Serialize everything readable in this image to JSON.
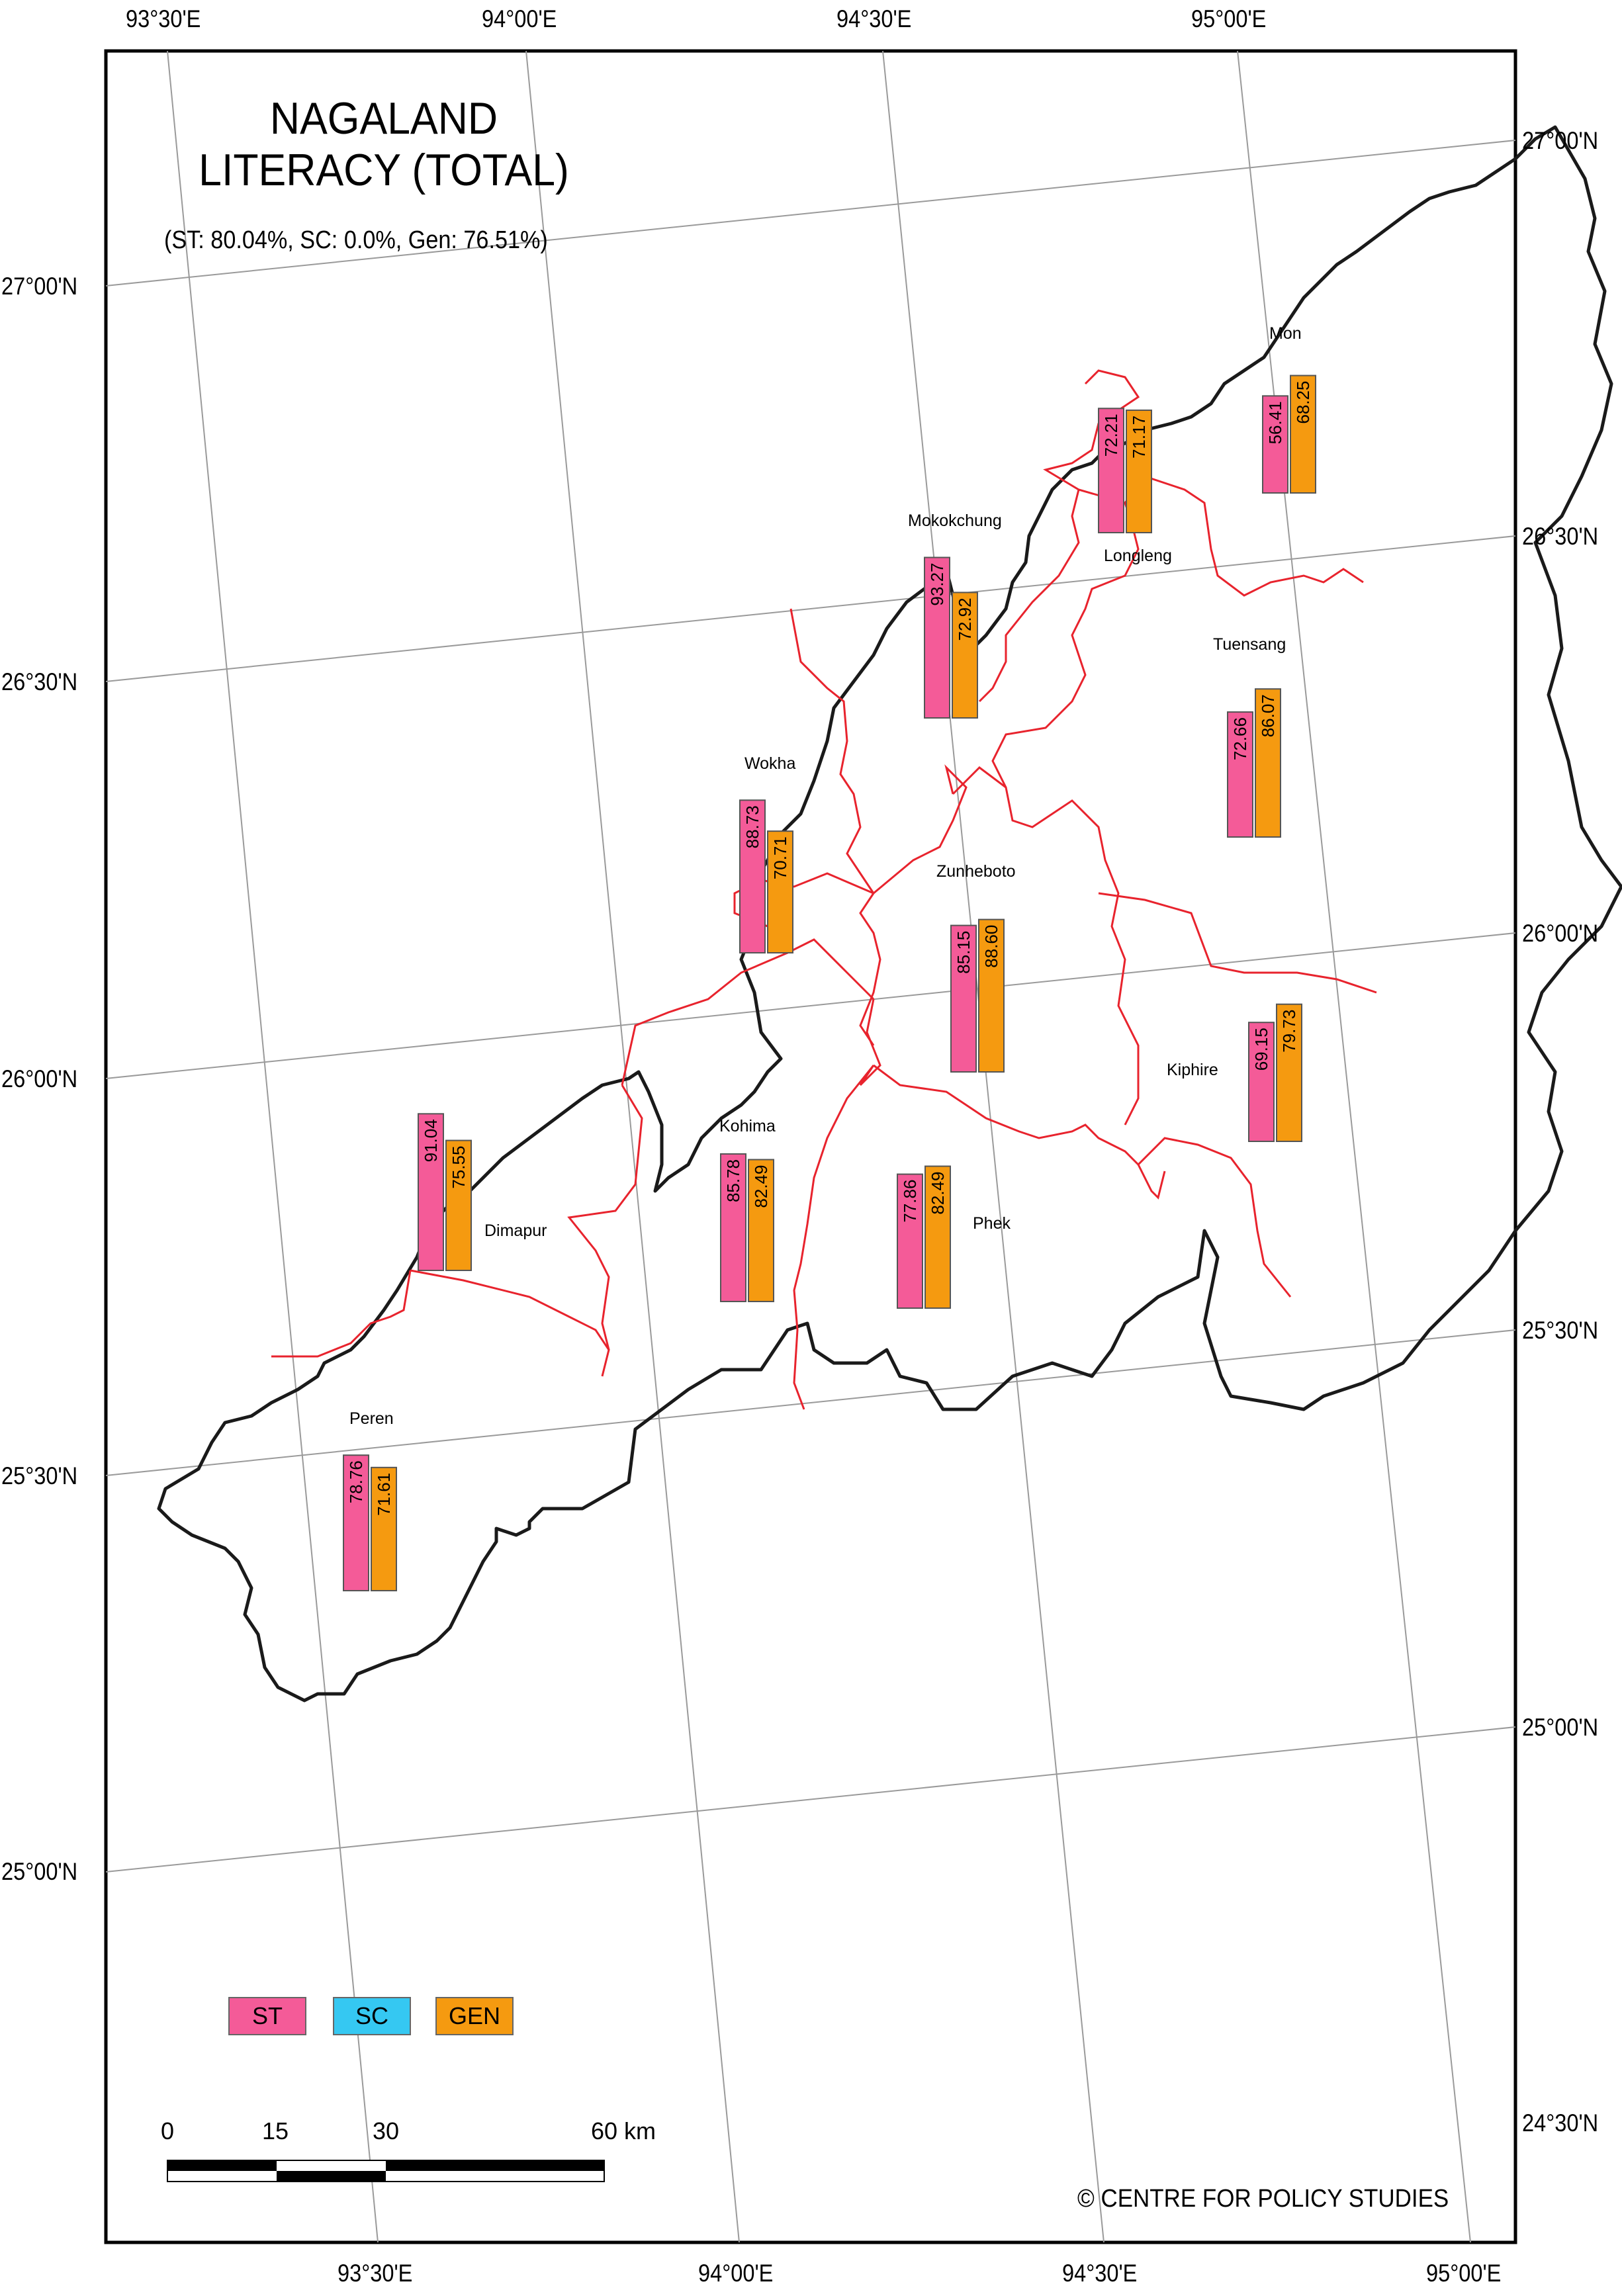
{
  "title": {
    "line1": "NAGALAND",
    "line2": "LITERACY (TOTAL)"
  },
  "subtitle": "(ST: 80.04%, SC: 0.0%, Gen: 76.51%)",
  "graticule": {
    "top_lon": [
      "93°30'E",
      "94°00'E",
      "94°30'E",
      "95°00'E"
    ],
    "bottom_lon": [
      "93°30'E",
      "94°00'E",
      "94°30'E",
      "95°00'E"
    ],
    "left_lat": [
      "27°00'N",
      "26°30'N",
      "26°00'N",
      "25°30'N",
      "25°00'N"
    ],
    "right_lat": [
      "27°00'N",
      "26°30'N",
      "26°00'N",
      "25°30'N",
      "25°00'N",
      "24°30'N"
    ]
  },
  "legend": {
    "st": "ST",
    "sc": "SC",
    "gen": "GEN"
  },
  "colors": {
    "st": "#f45b98",
    "sc": "#35c8f2",
    "gen": "#f59a10",
    "boundary": "#e8232d",
    "outline": "#1a1a1a",
    "grid": "#9a9a9a"
  },
  "scale_bar": {
    "labels": [
      "0",
      "15",
      "30",
      "60 km"
    ]
  },
  "credit": "© CENTRE FOR POLICY STUDIES",
  "districts": [
    {
      "name": "Mon",
      "st": "56.41",
      "gen": "68.25"
    },
    {
      "name": "Longleng",
      "st": "72.21",
      "gen": "71.17"
    },
    {
      "name": "Mokokchung",
      "st": "93.27",
      "gen": "72.92"
    },
    {
      "name": "Tuensang",
      "st": "72.66",
      "gen": "86.07"
    },
    {
      "name": "Wokha",
      "st": "88.73",
      "gen": "70.71"
    },
    {
      "name": "Zunheboto",
      "st": "85.15",
      "gen": "88.60"
    },
    {
      "name": "Kiphire",
      "st": "69.15",
      "gen": "79.73"
    },
    {
      "name": "Dimapur",
      "st": "91.04",
      "gen": "75.55"
    },
    {
      "name": "Kohima",
      "st": "85.78",
      "gen": "82.49"
    },
    {
      "name": "Phek",
      "st": "77.86",
      "gen": "82.49"
    },
    {
      "name": "Peren",
      "st": "78.76",
      "gen": "71.61"
    }
  ]
}
